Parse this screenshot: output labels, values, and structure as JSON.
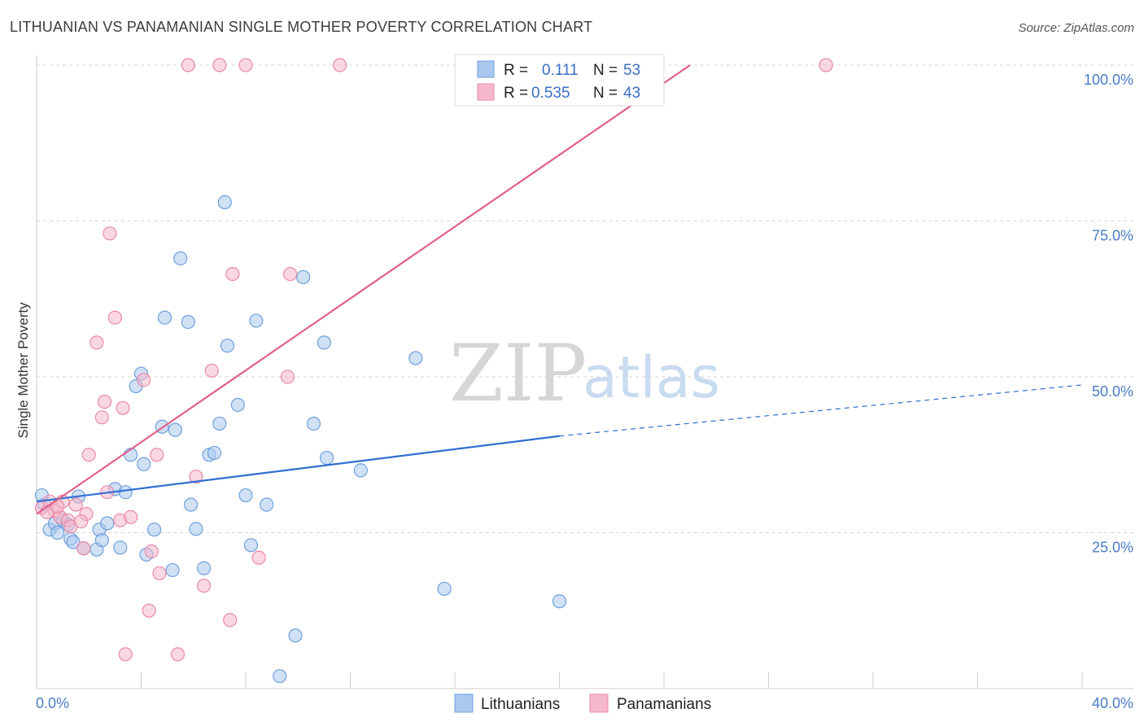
{
  "header": {
    "title": "LITHUANIAN VS PANAMANIAN SINGLE MOTHER POVERTY CORRELATION CHART",
    "source": "Source: ZipAtlas.com"
  },
  "watermark": {
    "zip": "ZIP",
    "atlas": "atlas"
  },
  "legend": {
    "r_label": "R =",
    "n_label": "N =",
    "rows": [
      {
        "series": "Lithuanians",
        "r": "0.111",
        "n": "53",
        "color": "#a9c8ee"
      },
      {
        "series": "Panamanians",
        "r": "0.535",
        "n": "43",
        "color": "#f5b8cb"
      }
    ]
  },
  "chart_data": {
    "type": "scatter",
    "title": "LITHUANIAN VS PANAMANIAN SINGLE MOTHER POVERTY CORRELATION CHART",
    "xlabel": "",
    "ylabel": "Single Mother Poverty",
    "xlim": [
      0,
      40
    ],
    "ylim": [
      0,
      100
    ],
    "x_tick_labels": [
      "0.0%",
      "40.0%"
    ],
    "y_ticks": [
      25,
      50,
      75,
      100
    ],
    "y_tick_labels": [
      "25.0%",
      "50.0%",
      "75.0%",
      "100.0%"
    ],
    "grid": true,
    "legend_position": "top-center",
    "series": [
      {
        "name": "Lithuanians",
        "color": "#a9c8ee",
        "edge": "#6f9fdc",
        "line_color": "#2f6fd1",
        "trend": {
          "x0": 0,
          "y0": 30.0,
          "x1": 20,
          "y1": 40.5,
          "dash_to_x": 40,
          "dash_to_y": 48.7
        },
        "points": [
          [
            0.3,
            29.5
          ],
          [
            0.5,
            25.5
          ],
          [
            0.7,
            26.5
          ],
          [
            0.8,
            25.0
          ],
          [
            1.0,
            27.0
          ],
          [
            1.3,
            24.0
          ],
          [
            1.4,
            23.5
          ],
          [
            1.8,
            22.5
          ],
          [
            2.3,
            22.3
          ],
          [
            2.4,
            25.5
          ],
          [
            2.7,
            26.5
          ],
          [
            3.0,
            32.0
          ],
          [
            3.4,
            31.5
          ],
          [
            3.6,
            37.5
          ],
          [
            3.8,
            48.5
          ],
          [
            4.0,
            50.5
          ],
          [
            4.1,
            36.0
          ],
          [
            4.2,
            21.5
          ],
          [
            4.5,
            25.5
          ],
          [
            4.8,
            42.0
          ],
          [
            4.9,
            59.5
          ],
          [
            5.2,
            19.0
          ],
          [
            5.3,
            41.5
          ],
          [
            5.5,
            69.0
          ],
          [
            5.8,
            58.8
          ],
          [
            5.9,
            29.5
          ],
          [
            6.4,
            19.3
          ],
          [
            6.6,
            37.5
          ],
          [
            6.8,
            37.8
          ],
          [
            7.0,
            42.5
          ],
          [
            7.2,
            78.0
          ],
          [
            7.3,
            55.0
          ],
          [
            7.7,
            45.5
          ],
          [
            8.0,
            31.0
          ],
          [
            8.2,
            23.0
          ],
          [
            8.4,
            59.0
          ],
          [
            8.8,
            29.5
          ],
          [
            9.3,
            2.0
          ],
          [
            9.9,
            8.5
          ],
          [
            10.6,
            42.5
          ],
          [
            11.0,
            55.5
          ],
          [
            11.1,
            37.0
          ],
          [
            12.4,
            35.0
          ],
          [
            14.5,
            53.0
          ],
          [
            15.6,
            16.0
          ],
          [
            20.0,
            14.0
          ],
          [
            1.6,
            30.8
          ],
          [
            2.5,
            23.8
          ],
          [
            3.2,
            22.6
          ],
          [
            6.1,
            25.6
          ],
          [
            10.2,
            66.0
          ],
          [
            0.2,
            31.0
          ],
          [
            1.2,
            26.3
          ]
        ]
      },
      {
        "name": "Panamanians",
        "color": "#f5b8cb",
        "edge": "#e98aa8",
        "line_color": "#e0608a",
        "trend": {
          "x0": 0,
          "y0": 28.0,
          "x1": 25,
          "y1": 100.0
        },
        "points": [
          [
            0.2,
            29.0
          ],
          [
            0.5,
            30.0
          ],
          [
            0.7,
            28.5
          ],
          [
            0.9,
            27.5
          ],
          [
            1.0,
            30.0
          ],
          [
            1.2,
            27.0
          ],
          [
            1.3,
            26.0
          ],
          [
            1.5,
            29.5
          ],
          [
            1.8,
            22.5
          ],
          [
            1.9,
            28.0
          ],
          [
            2.0,
            37.5
          ],
          [
            2.3,
            55.5
          ],
          [
            2.5,
            43.5
          ],
          [
            2.6,
            46.0
          ],
          [
            2.7,
            31.5
          ],
          [
            2.8,
            73.0
          ],
          [
            3.0,
            59.5
          ],
          [
            3.2,
            27.0
          ],
          [
            3.3,
            45.0
          ],
          [
            3.4,
            5.5
          ],
          [
            3.6,
            27.5
          ],
          [
            4.1,
            49.5
          ],
          [
            4.3,
            12.5
          ],
          [
            4.4,
            22.0
          ],
          [
            4.6,
            37.5
          ],
          [
            4.7,
            18.5
          ],
          [
            5.4,
            5.5
          ],
          [
            5.8,
            100.0
          ],
          [
            6.1,
            34.0
          ],
          [
            6.4,
            16.5
          ],
          [
            6.7,
            51.0
          ],
          [
            7.0,
            100.0
          ],
          [
            7.4,
            11.0
          ],
          [
            7.5,
            66.5
          ],
          [
            8.0,
            100.0
          ],
          [
            8.5,
            21.0
          ],
          [
            9.6,
            50.0
          ],
          [
            9.7,
            66.5
          ],
          [
            11.6,
            100.0
          ],
          [
            30.2,
            100.0
          ],
          [
            0.4,
            28.3
          ],
          [
            1.7,
            26.8
          ],
          [
            0.8,
            29.2
          ]
        ]
      }
    ]
  }
}
